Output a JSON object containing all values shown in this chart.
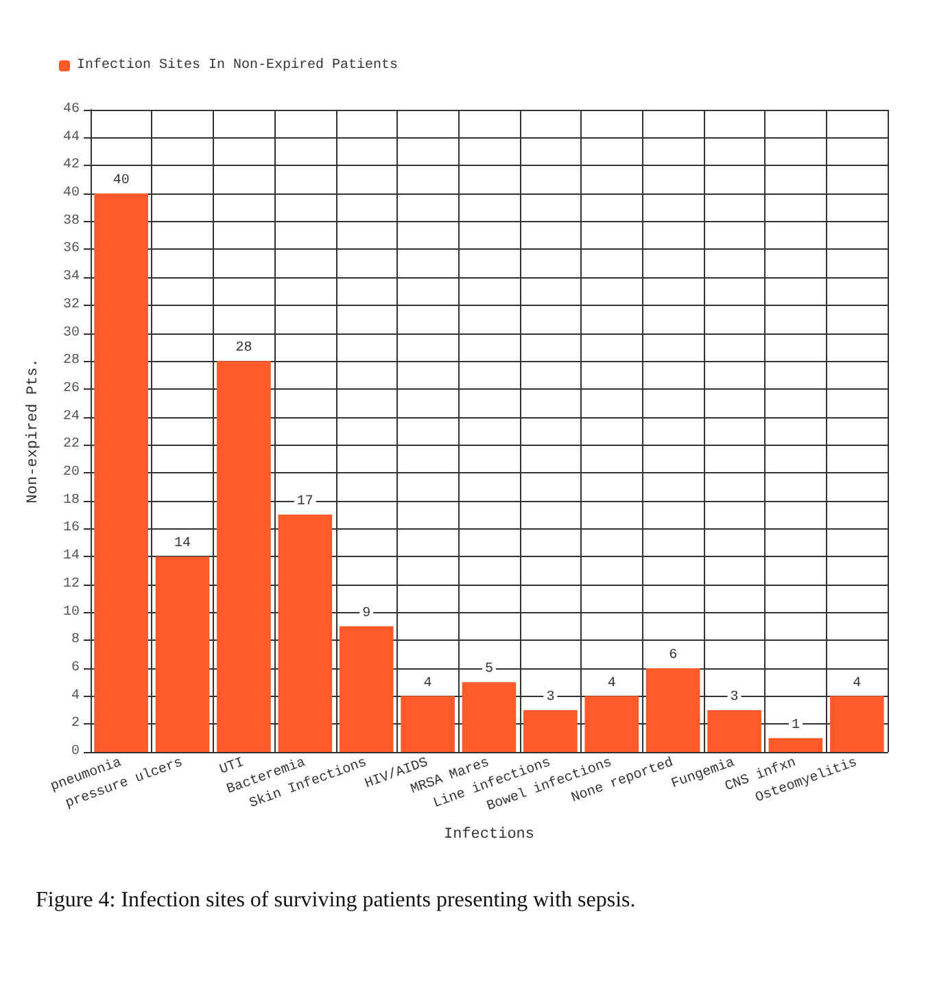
{
  "chart_data": {
    "type": "bar",
    "xlabel": "Infections",
    "ylabel": "Non-expired Pts.",
    "categories": [
      "pneumonia",
      "pressure ulcers",
      "UTI",
      "Bacteremia",
      "Skin Infections",
      "HIV/AIDS",
      "MRSA Mares",
      "Line infections",
      "Bowel infections",
      "None reported",
      "Fungemia",
      "CNS infxn",
      "Osteomyelitis"
    ],
    "series": [
      {
        "name": "Infection Sites In Non-Expired Patients",
        "color": "#ff5a2a",
        "values": [
          40,
          14,
          28,
          17,
          9,
          4,
          5,
          3,
          4,
          6,
          3,
          1,
          4
        ]
      }
    ],
    "ylim": [
      0,
      46
    ],
    "yticks": [
      0,
      2,
      4,
      6,
      8,
      10,
      12,
      14,
      16,
      18,
      20,
      22,
      24,
      26,
      28,
      30,
      32,
      34,
      36,
      38,
      40,
      42,
      44,
      46
    ],
    "grid": true,
    "legend": "top left",
    "data_labels": true,
    "annotations": [
      "Figure 4: Infection sites of surviving patients presenting with sepsis."
    ]
  }
}
